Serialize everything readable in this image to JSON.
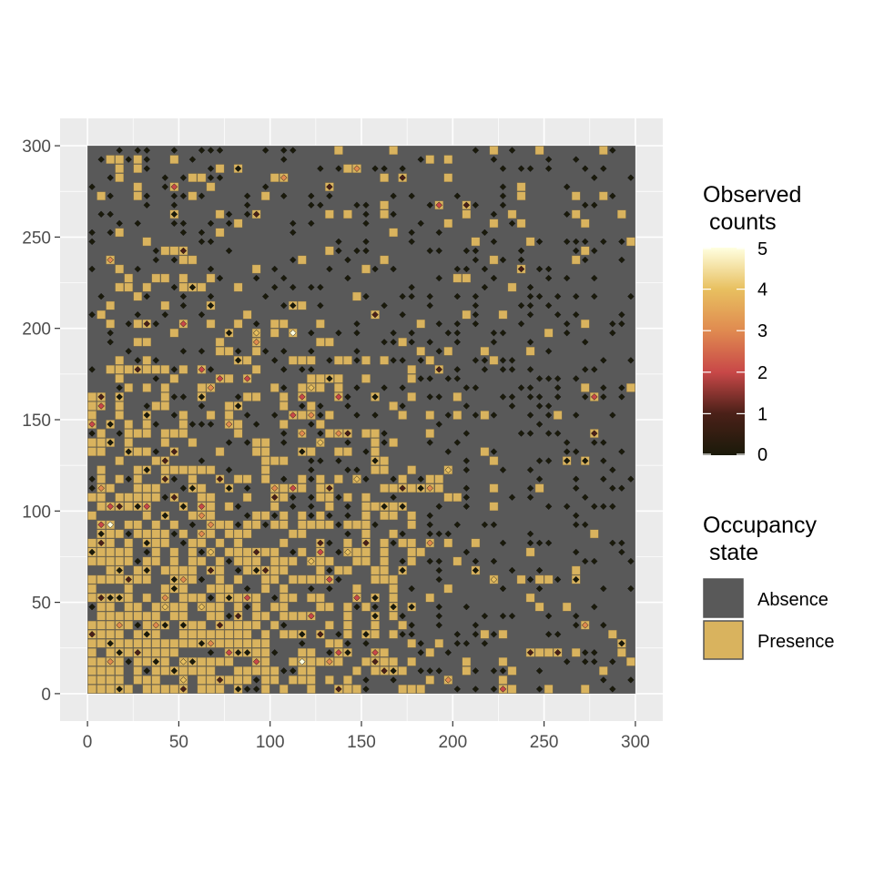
{
  "chart_data": {
    "type": "heatmap",
    "title": "",
    "xlabel": "",
    "ylabel": "",
    "xlim": [
      -15,
      315
    ],
    "ylim": [
      -15,
      315
    ],
    "grid": "on",
    "x_ticks": [
      0,
      50,
      100,
      150,
      200,
      250,
      300
    ],
    "y_ticks": [
      0,
      50,
      100,
      150,
      200,
      250,
      300
    ],
    "cell_size": 5,
    "x": [
      0,
      300
    ],
    "y": [
      0,
      300
    ],
    "occupancy_layer": {
      "description": "Cells shaded by occupancy state",
      "legend_title": "Occupancy\n state",
      "categories": [
        "Absence",
        "Presence"
      ],
      "colors": {
        "Absence": "#595959",
        "Presence": "#D9B35E"
      },
      "presence_probability_by_region": [
        {
          "region": "x 0-80, y 0-120",
          "presence": 0.88
        },
        {
          "region": "x 80-180, y 0-140",
          "presence": 0.6
        },
        {
          "region": "x 180-300, y 0-60",
          "presence": 0.5
        },
        {
          "region": "x 0-150, y 140-300",
          "presence": 0.45
        },
        {
          "region": "x 150-300, y 60-300",
          "presence": 0.2
        }
      ]
    },
    "count_layer": {
      "description": "Points at sampled cells colored by observed counts",
      "legend_title": "Observed\n counts",
      "range": [
        0,
        5
      ],
      "legend_ticks": [
        0,
        1,
        2,
        3,
        4,
        5
      ],
      "colorscale": [
        "#1a1a0a",
        "#4a2018",
        "#c84848",
        "#e08a50",
        "#e8c060",
        "#ffffe0"
      ],
      "shape": "diamond"
    },
    "legend_position": "right"
  },
  "legend": {
    "counts_title_line1": "Observed",
    "counts_title_line2": " counts",
    "state_title_line1": "Occupancy",
    "state_title_line2": " state"
  }
}
